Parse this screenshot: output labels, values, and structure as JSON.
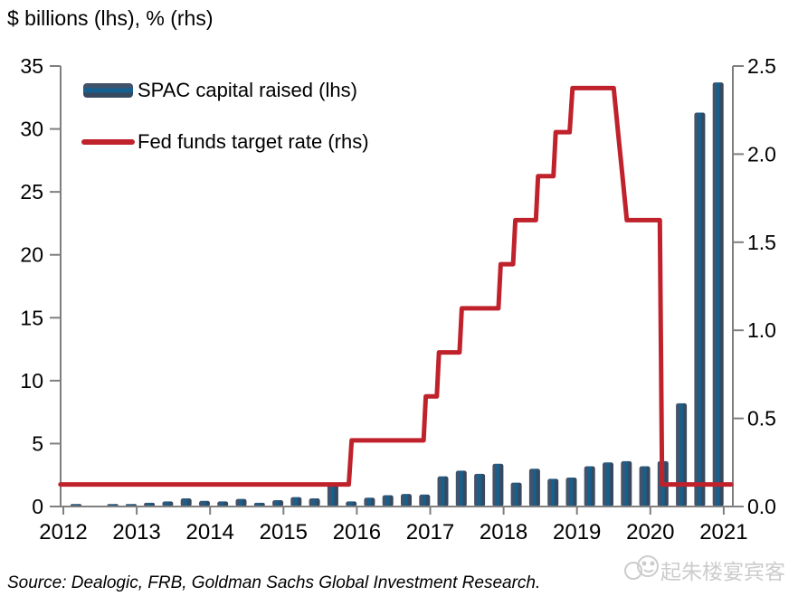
{
  "title": "$ billions (lhs), % (rhs)",
  "source": "Source: Dealogic, FRB, Goldman Sachs Global Investment Research.",
  "watermark": "起朱楼宴宾客",
  "legend": [
    {
      "label": "SPAC capital raised (lhs)",
      "type": "bar"
    },
    {
      "label": "Fed funds target rate (rhs)",
      "type": "line"
    }
  ],
  "colors": {
    "bar_edge": "#42536a",
    "bar_dark": "#37495f",
    "bar_stripe": "#15608f",
    "line_red": "#c0222c",
    "axis_gray": "#7f7f7f",
    "watermark_gray": "#cccccc"
  },
  "chart_data": {
    "type": "bar",
    "subtype": "dual-axis bar + step line",
    "title": "$ billions (lhs), % (rhs)",
    "xlabel": "",
    "ylabel_left": "$ billions",
    "ylabel_right": "%",
    "x_years": [
      2012,
      2013,
      2014,
      2015,
      2016,
      2017,
      2018,
      2019,
      2020,
      2021
    ],
    "left_axis": {
      "ticks": [
        35,
        30,
        25,
        20,
        15,
        10,
        5,
        0
      ],
      "range": [
        0,
        35
      ]
    },
    "right_axis": {
      "ticks": [
        "2.5",
        "2.0",
        "1.5",
        "1.0",
        "0.5",
        "0.0"
      ],
      "range": [
        0,
        2.5
      ]
    },
    "grid": false,
    "legend_position": "top-left inside",
    "series": [
      {
        "name": "SPAC capital raised (lhs)",
        "axis": "left",
        "type": "bar",
        "quarters": [
          "2012 Q1",
          "2012 Q2",
          "2012 Q3",
          "2012 Q4",
          "2013 Q1",
          "2013 Q2",
          "2013 Q3",
          "2013 Q4",
          "2014 Q1",
          "2014 Q2",
          "2014 Q3",
          "2014 Q4",
          "2015 Q1",
          "2015 Q2",
          "2015 Q3",
          "2015 Q4",
          "2016 Q1",
          "2016 Q2",
          "2016 Q3",
          "2016 Q4",
          "2017 Q1",
          "2017 Q2",
          "2017 Q3",
          "2017 Q4",
          "2018 Q1",
          "2018 Q2",
          "2018 Q3",
          "2018 Q4",
          "2019 Q1",
          "2019 Q2",
          "2019 Q3",
          "2019 Q4",
          "2020 Q1",
          "2020 Q2",
          "2020 Q3",
          "2020 Q4"
        ],
        "values": [
          0.2,
          0.05,
          0.2,
          0.2,
          0.3,
          0.4,
          0.65,
          0.45,
          0.4,
          0.6,
          0.3,
          0.5,
          0.75,
          0.65,
          1.8,
          0.4,
          0.7,
          0.9,
          1.0,
          0.95,
          2.4,
          2.85,
          2.6,
          3.4,
          1.9,
          3.0,
          2.2,
          2.3,
          3.2,
          3.5,
          3.6,
          3.2,
          3.6,
          8.2,
          31.3,
          33.7
        ]
      },
      {
        "name": "Fed funds target rate (rhs)",
        "axis": "right",
        "type": "step-line",
        "points": [
          [
            2011.96,
            0.125
          ],
          [
            2015.89,
            0.125
          ],
          [
            2015.93,
            0.375
          ],
          [
            2016.91,
            0.375
          ],
          [
            2016.94,
            0.625
          ],
          [
            2017.09,
            0.625
          ],
          [
            2017.12,
            0.875
          ],
          [
            2017.4,
            0.875
          ],
          [
            2017.43,
            1.125
          ],
          [
            2017.93,
            1.125
          ],
          [
            2017.96,
            1.375
          ],
          [
            2018.13,
            1.375
          ],
          [
            2018.16,
            1.625
          ],
          [
            2018.44,
            1.625
          ],
          [
            2018.47,
            1.875
          ],
          [
            2018.68,
            1.875
          ],
          [
            2018.71,
            2.125
          ],
          [
            2018.9,
            2.125
          ],
          [
            2018.94,
            2.375
          ],
          [
            2019.5,
            2.375
          ],
          [
            2019.56,
            2.125
          ],
          [
            2019.62,
            1.875
          ],
          [
            2019.68,
            1.625
          ],
          [
            2020.13,
            1.625
          ],
          [
            2020.16,
            0.125
          ],
          [
            2021.1,
            0.125
          ]
        ]
      }
    ]
  }
}
